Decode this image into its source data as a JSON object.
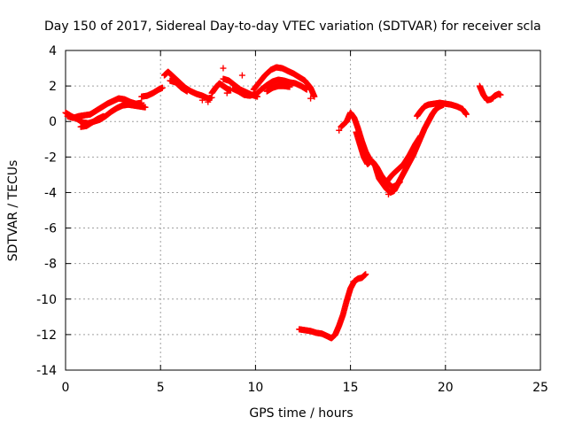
{
  "chart_data": {
    "type": "scatter",
    "title": "Day 150 of 2017, Sidereal Day-to-day VTEC variation (SDTVAR) for receiver scla",
    "xlabel": "GPS time / hours",
    "ylabel": "SDTVAR / TECUs",
    "xlim": [
      0,
      25
    ],
    "ylim": [
      -14,
      4
    ],
    "xticks": [
      "0",
      "5",
      "10",
      "15",
      "20",
      "25"
    ],
    "yticks": [
      "4",
      "2",
      "0",
      "-2",
      "-4",
      "-6",
      "-8",
      "-10",
      "-12",
      "-14"
    ],
    "xtick_values": [
      0,
      5,
      10,
      15,
      20,
      25
    ],
    "ytick_values": [
      4,
      2,
      0,
      -2,
      -4,
      -6,
      -8,
      -10,
      -12,
      -14
    ],
    "grid": true,
    "marker": "+",
    "color": "#ff0000",
    "series": [
      {
        "segments": [
          [
            [
              0.0,
              0.5
            ],
            [
              0.3,
              0.3
            ],
            [
              0.6,
              0.15
            ],
            [
              0.9,
              -0.05
            ],
            [
              1.2,
              -0.1
            ],
            [
              1.5,
              0.0
            ],
            [
              1.8,
              0.1
            ],
            [
              2.1,
              0.3
            ],
            [
              2.4,
              0.55
            ],
            [
              2.7,
              0.75
            ],
            [
              3.0,
              0.9
            ],
            [
              3.3,
              0.95
            ],
            [
              3.6,
              0.9
            ],
            [
              3.9,
              0.85
            ],
            [
              4.2,
              0.8
            ]
          ],
          [
            [
              0.1,
              0.3
            ],
            [
              0.4,
              0.2
            ],
            [
              0.7,
              0.3
            ],
            [
              1.0,
              0.35
            ],
            [
              1.3,
              0.4
            ],
            [
              1.6,
              0.6
            ],
            [
              1.9,
              0.8
            ],
            [
              2.2,
              1.0
            ],
            [
              2.5,
              1.15
            ],
            [
              2.8,
              1.3
            ],
            [
              3.1,
              1.25
            ],
            [
              3.4,
              1.1
            ],
            [
              3.7,
              1.0
            ],
            [
              4.0,
              1.05
            ]
          ],
          [
            [
              0.8,
              -0.3
            ],
            [
              1.1,
              -0.25
            ],
            [
              1.4,
              -0.05
            ],
            [
              1.7,
              0.15
            ],
            [
              2.0,
              0.3
            ]
          ],
          [
            [
              4.0,
              1.4
            ],
            [
              4.3,
              1.45
            ],
            [
              4.6,
              1.6
            ],
            [
              4.9,
              1.8
            ],
            [
              5.1,
              1.9
            ]
          ],
          [
            [
              5.2,
              2.6
            ],
            [
              5.4,
              2.8
            ],
            [
              5.7,
              2.5
            ],
            [
              6.0,
              2.2
            ],
            [
              6.3,
              1.9
            ],
            [
              6.6,
              1.7
            ],
            [
              6.9,
              1.55
            ],
            [
              7.2,
              1.45
            ],
            [
              7.5,
              1.3
            ],
            [
              7.7,
              1.35
            ]
          ],
          [
            [
              5.5,
              2.3
            ],
            [
              5.8,
              2.2
            ],
            [
              6.1,
              1.9
            ],
            [
              6.4,
              1.7
            ]
          ],
          [
            [
              7.7,
              1.6
            ],
            [
              7.9,
              1.9
            ],
            [
              8.1,
              2.15
            ],
            [
              8.3,
              2.0
            ],
            [
              8.5,
              1.85
            ],
            [
              8.7,
              1.75
            ]
          ],
          [
            [
              8.3,
              2.4
            ],
            [
              8.6,
              2.3
            ],
            [
              8.9,
              2.05
            ],
            [
              9.2,
              1.8
            ],
            [
              9.5,
              1.65
            ],
            [
              9.8,
              1.5
            ],
            [
              10.1,
              1.4
            ]
          ],
          [
            [
              8.8,
              1.85
            ],
            [
              9.1,
              1.7
            ],
            [
              9.4,
              1.5
            ],
            [
              9.7,
              1.45
            ],
            [
              10.0,
              1.55
            ]
          ],
          [
            [
              9.9,
              1.8
            ],
            [
              10.2,
              2.2
            ],
            [
              10.5,
              2.6
            ],
            [
              10.8,
              2.9
            ],
            [
              11.1,
              3.05
            ],
            [
              11.4,
              3.0
            ],
            [
              11.7,
              2.85
            ],
            [
              12.0,
              2.7
            ],
            [
              12.3,
              2.5
            ],
            [
              12.6,
              2.3
            ],
            [
              12.9,
              1.9
            ],
            [
              13.1,
              1.4
            ]
          ],
          [
            [
              10.0,
              1.5
            ],
            [
              10.3,
              1.8
            ],
            [
              10.6,
              2.05
            ],
            [
              10.9,
              2.25
            ],
            [
              11.2,
              2.35
            ],
            [
              11.5,
              2.3
            ],
            [
              11.8,
              2.2
            ],
            [
              12.1,
              2.15
            ],
            [
              12.4,
              2.0
            ],
            [
              12.7,
              1.8
            ]
          ],
          [
            [
              10.6,
              1.7
            ],
            [
              10.9,
              1.9
            ],
            [
              11.2,
              2.0
            ],
            [
              11.5,
              2.0
            ],
            [
              11.8,
              1.95
            ]
          ],
          [
            [
              14.5,
              -0.3
            ],
            [
              14.8,
              0.0
            ],
            [
              15.0,
              0.5
            ],
            [
              15.2,
              0.2
            ],
            [
              15.4,
              -0.4
            ],
            [
              15.6,
              -1.1
            ],
            [
              15.8,
              -1.7
            ],
            [
              16.0,
              -2.1
            ],
            [
              16.2,
              -2.3
            ],
            [
              16.4,
              -2.6
            ],
            [
              16.6,
              -3.0
            ],
            [
              16.8,
              -3.3
            ],
            [
              17.0,
              -3.5
            ],
            [
              17.2,
              -3.7
            ],
            [
              17.4,
              -3.6
            ],
            [
              17.6,
              -3.4
            ]
          ],
          [
            [
              15.3,
              -0.6
            ],
            [
              15.5,
              -1.3
            ],
            [
              15.7,
              -2.0
            ],
            [
              15.9,
              -2.4
            ],
            [
              16.1,
              -2.2
            ],
            [
              16.3,
              -2.5
            ],
            [
              16.5,
              -3.2
            ],
            [
              16.7,
              -3.5
            ],
            [
              16.9,
              -3.8
            ],
            [
              17.1,
              -4.0
            ],
            [
              17.3,
              -3.9
            ],
            [
              17.5,
              -3.5
            ],
            [
              17.7,
              -3.1
            ],
            [
              17.9,
              -2.7
            ],
            [
              18.1,
              -2.3
            ],
            [
              18.3,
              -1.9
            ],
            [
              18.5,
              -1.4
            ],
            [
              18.7,
              -0.9
            ],
            [
              18.9,
              -0.4
            ],
            [
              19.1,
              0.0
            ],
            [
              19.3,
              0.4
            ],
            [
              19.5,
              0.7
            ],
            [
              19.7,
              0.85
            ],
            [
              19.9,
              0.95
            ]
          ],
          [
            [
              16.9,
              -3.4
            ],
            [
              17.2,
              -3.0
            ],
            [
              17.5,
              -2.7
            ],
            [
              17.8,
              -2.4
            ],
            [
              18.1,
              -1.9
            ],
            [
              18.4,
              -1.3
            ],
            [
              18.7,
              -0.8
            ]
          ],
          [
            [
              18.5,
              0.3
            ],
            [
              18.7,
              0.6
            ],
            [
              18.9,
              0.85
            ],
            [
              19.1,
              0.95
            ],
            [
              19.4,
              1.0
            ],
            [
              19.7,
              1.05
            ],
            [
              20.0,
              1.0
            ],
            [
              20.3,
              0.95
            ],
            [
              20.6,
              0.85
            ],
            [
              20.9,
              0.7
            ],
            [
              21.1,
              0.4
            ]
          ],
          [
            [
              21.8,
              2.0
            ],
            [
              22.0,
              1.5
            ],
            [
              22.2,
              1.2
            ],
            [
              22.4,
              1.25
            ],
            [
              22.6,
              1.45
            ],
            [
              22.8,
              1.55
            ],
            [
              22.9,
              1.5
            ]
          ],
          [
            [
              12.3,
              -11.7
            ],
            [
              12.6,
              -11.75
            ],
            [
              12.9,
              -11.8
            ],
            [
              13.2,
              -11.9
            ],
            [
              13.5,
              -11.95
            ],
            [
              13.8,
              -12.1
            ],
            [
              14.0,
              -12.2
            ],
            [
              14.2,
              -12.0
            ],
            [
              14.4,
              -11.5
            ],
            [
              14.6,
              -10.9
            ],
            [
              14.8,
              -10.1
            ],
            [
              15.0,
              -9.4
            ],
            [
              15.2,
              -9.0
            ],
            [
              15.4,
              -8.85
            ],
            [
              15.6,
              -8.8
            ],
            [
              15.8,
              -8.6
            ]
          ]
        ],
        "isolated": [
          [
            7.5,
            1.1
          ],
          [
            7.2,
            1.2
          ],
          [
            8.5,
            1.6
          ],
          [
            8.3,
            3.0
          ],
          [
            9.3,
            2.6
          ],
          [
            12.9,
            1.3
          ],
          [
            14.4,
            -0.5
          ],
          [
            17.0,
            -4.1
          ],
          [
            22.5,
            1.3
          ]
        ]
      }
    ]
  }
}
